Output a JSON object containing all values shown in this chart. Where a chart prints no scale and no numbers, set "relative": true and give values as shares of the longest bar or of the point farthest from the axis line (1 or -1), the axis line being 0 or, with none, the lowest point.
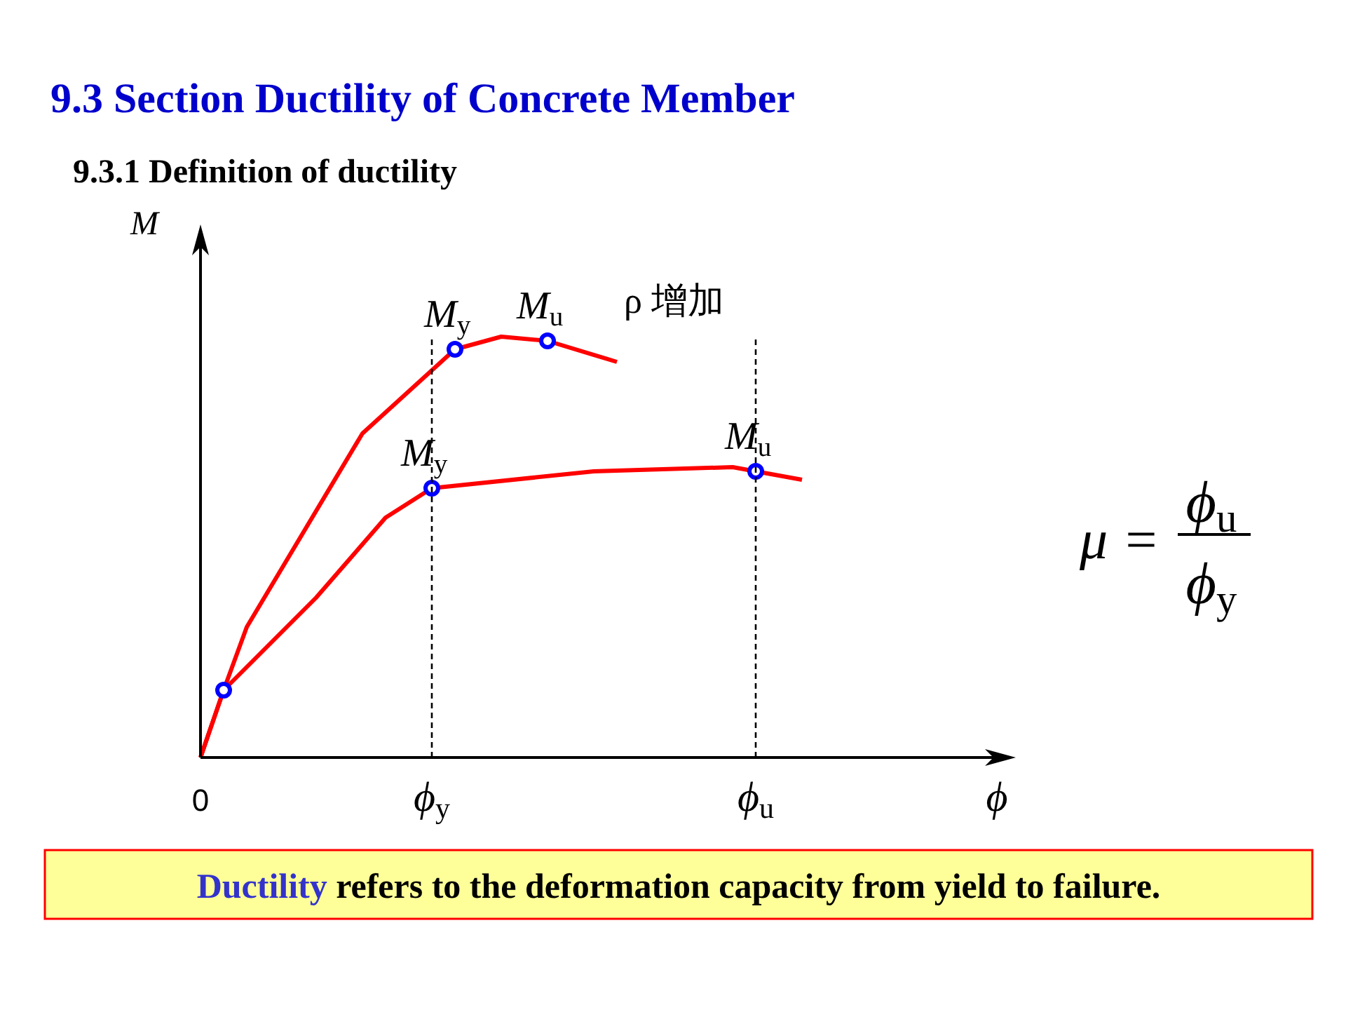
{
  "chart_data": {
    "type": "line",
    "title": "9.3 Section Ductility of Concrete Member",
    "subtitle": "9.3.1 Definition of ductility",
    "xlabel": "ϕ",
    "ylabel": "M",
    "relative": true,
    "categories": [
      "0",
      null,
      null,
      null,
      null,
      null,
      null,
      null,
      null,
      null,
      "ϕ$_{y}$",
      null,
      null,
      null,
      null,
      null,
      null,
      null,
      null,
      null,
      null,
      null,
      null,
      null,
      "ϕ$_{u}$",
      null,
      null,
      null,
      null,
      null,
      null,
      null,
      null,
      null,
      null,
      null
    ],
    "series": [
      {
        "color": "#ff0000",
        "values": [
          0,
          0.16,
          0.31,
          null,
          null,
          null,
          null,
          0.77,
          null,
          null,
          null,
          0.97,
          null,
          1.0,
          null,
          0.99,
          null,
          null,
          0.94,
          null,
          null,
          null,
          null,
          null,
          null,
          null,
          null,
          null,
          null,
          null,
          null,
          null,
          null,
          null,
          null,
          null
        ]
      },
      {
        "color": "#ff0000",
        "values": [
          0,
          0.16,
          null,
          null,
          null,
          0.38,
          null,
          null,
          0.57,
          null,
          0.64,
          null,
          null,
          null,
          null,
          null,
          null,
          0.68,
          null,
          null,
          null,
          null,
          null,
          0.69,
          0.68,
          null,
          0.66,
          null,
          null,
          null,
          null,
          null,
          null,
          null,
          null,
          null
        ]
      },
      {
        "type": "scatter",
        "marker": "circle",
        "color": "#0000ff",
        "values": [
          null,
          0.16,
          null,
          null,
          null,
          null,
          null,
          null,
          null,
          null,
          0.64,
          0.97,
          null,
          null,
          null,
          0.99,
          null,
          null,
          null,
          null,
          null,
          null,
          null,
          null,
          0.68,
          null,
          null,
          null,
          null,
          null,
          null,
          null,
          null,
          null,
          null,
          null
        ]
      }
    ],
    "ref_lines": [
      {
        "axis": "x",
        "value": "ϕ$_{y}$",
        "line_style": "dashed"
      },
      {
        "axis": "x",
        "value": "ϕ$_{u}$",
        "line_style": "dashed"
      }
    ],
    "annotations": [
      "M$_{y}$",
      "M$_{y}$",
      "M$_{u}$",
      "M$_{u}$",
      "ρ 增加",
      "μ =",
      "ϕ$_{u}$",
      "ϕ$_{y}$",
      "Ductility refers to the deformation capacity from yield to failure."
    ]
  }
}
